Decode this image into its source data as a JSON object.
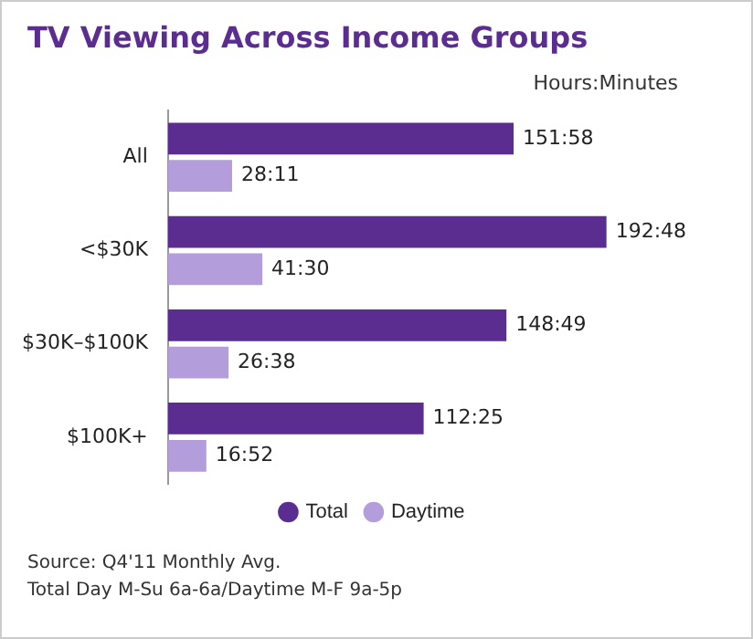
{
  "chart_data": {
    "type": "bar",
    "orientation": "horizontal",
    "title": "TV Viewing Across Income Groups",
    "categories": [
      "All",
      "<$30K",
      "$30K–$100K",
      "$100K+"
    ],
    "series": [
      {
        "name": "Total",
        "color": "#5c2d91",
        "values": [
          9118,
          11568,
          8929,
          6745
        ],
        "value_labels": [
          "151:58",
          "192:48",
          "148:49",
          "112:25"
        ]
      },
      {
        "name": "Daytime",
        "color": "#b39ddb",
        "values": [
          1691,
          2490,
          1598,
          1012
        ],
        "value_labels": [
          "28:11",
          "41:30",
          "26:38",
          "16:52"
        ]
      }
    ],
    "tick_labels": "y",
    "legend": "bottom",
    "annotations": [
      "Hours:Minutes",
      "Source: Q4'11 Monthly Avg.",
      "Total Day M-Su 6a-6a/Daytime M-F 9a-5p"
    ]
  }
}
